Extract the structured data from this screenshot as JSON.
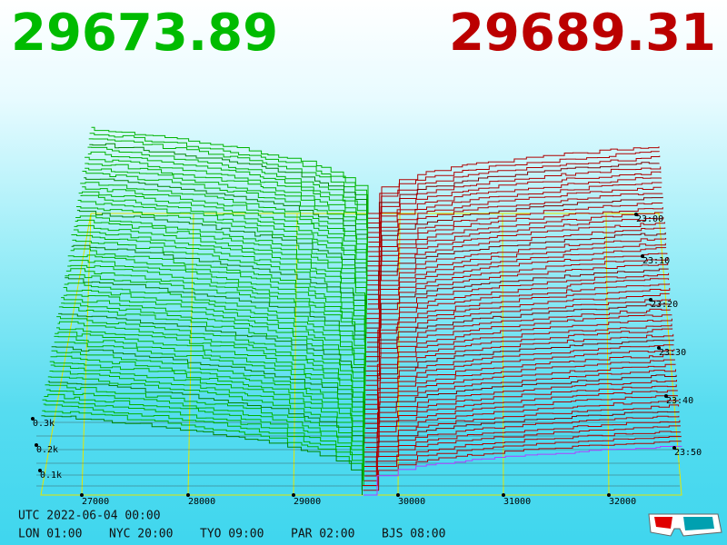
{
  "header": {
    "bid": "29673.89",
    "ask": "29689.31"
  },
  "price_axis": [
    "27000",
    "28000",
    "29000",
    "30000",
    "31000",
    "32000"
  ],
  "depth_axis": [
    "0.3k",
    "0.2k",
    "0.1k"
  ],
  "time_axis": [
    "23:00",
    "23:10",
    "23:20",
    "23:30",
    "23:40",
    "23:50"
  ],
  "footer": {
    "utc": "UTC 2022-06-04 00:00",
    "zones": [
      "LON 01:00",
      "NYC 20:00",
      "TYO 09:00",
      "PAR 02:00",
      "BJS 08:00"
    ]
  }
}
